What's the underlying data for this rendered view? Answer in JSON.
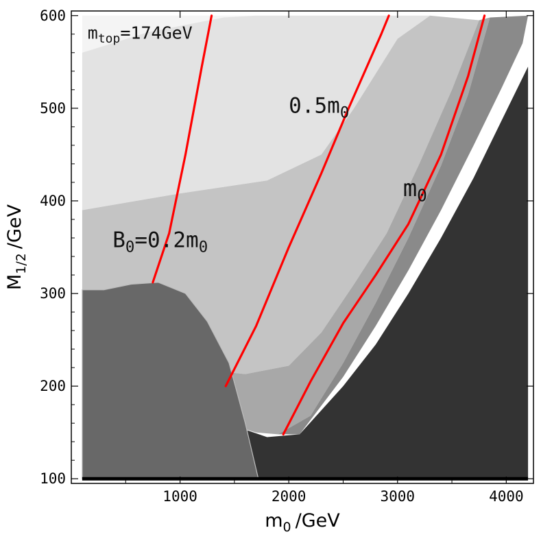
{
  "chart_data": {
    "type": "area",
    "title": "",
    "xlabel": {
      "base": "m",
      "sub": "0",
      "unit": "/GeV"
    },
    "ylabel": {
      "base": "M",
      "sub": "1/2",
      "unit": "/GeV"
    },
    "xlim": [
      0,
      4250
    ],
    "ylim": [
      95,
      605
    ],
    "xticks": [
      1000,
      2000,
      3000,
      4000
    ],
    "yticks": [
      100,
      200,
      300,
      400,
      500,
      600
    ],
    "grid": false,
    "colors": {
      "region_lightest": "#f4f4f4",
      "region_light": "#e3e3e3",
      "region_mid": "#c4c4c4",
      "region_midbottom": "#a8a8a8",
      "region_darker": "#8a8a8a",
      "region_excluded_left": "#686868",
      "region_excluded_right": "#333333",
      "contour_line": "#ff0000",
      "baseline": "#000000"
    },
    "regions": [
      {
        "name": "region_lightest",
        "points": [
          [
            100,
            560
          ],
          [
            700,
            582
          ],
          [
            1400,
            598
          ],
          [
            1700,
            600
          ],
          [
            100,
            600
          ]
        ]
      },
      {
        "name": "region_light",
        "points": [
          [
            100,
            390
          ],
          [
            1000,
            408
          ],
          [
            1800,
            422
          ],
          [
            2300,
            450
          ],
          [
            2600,
            500
          ],
          [
            3000,
            575
          ],
          [
            3300,
            600
          ],
          [
            1700,
            600
          ],
          [
            1400,
            598
          ],
          [
            700,
            582
          ],
          [
            100,
            560
          ]
        ]
      },
      {
        "name": "region_mid",
        "points": [
          [
            100,
            240
          ],
          [
            600,
            225
          ],
          [
            1200,
            218
          ],
          [
            1600,
            213
          ],
          [
            2000,
            222
          ],
          [
            2300,
            258
          ],
          [
            2600,
            310
          ],
          [
            2900,
            365
          ],
          [
            3200,
            440
          ],
          [
            3500,
            520
          ],
          [
            3750,
            595
          ],
          [
            3300,
            600
          ],
          [
            3000,
            575
          ],
          [
            2600,
            500
          ],
          [
            2300,
            450
          ],
          [
            1800,
            422
          ],
          [
            1000,
            408
          ],
          [
            100,
            390
          ]
        ]
      },
      {
        "name": "region_midbottom",
        "points": [
          [
            100,
            160
          ],
          [
            1500,
            157
          ],
          [
            1700,
            150
          ],
          [
            1900,
            148
          ],
          [
            2200,
            168
          ],
          [
            2500,
            225
          ],
          [
            2800,
            290
          ],
          [
            3100,
            360
          ],
          [
            3400,
            438
          ],
          [
            3650,
            515
          ],
          [
            3850,
            598
          ],
          [
            3750,
            595
          ],
          [
            3500,
            520
          ],
          [
            3200,
            440
          ],
          [
            2900,
            365
          ],
          [
            2600,
            310
          ],
          [
            2300,
            258
          ],
          [
            2000,
            222
          ],
          [
            1600,
            213
          ],
          [
            1200,
            218
          ],
          [
            600,
            225
          ],
          [
            100,
            240
          ]
        ]
      },
      {
        "name": "region_darker",
        "points": [
          [
            2100,
            148
          ],
          [
            2500,
            210
          ],
          [
            2800,
            265
          ],
          [
            3100,
            325
          ],
          [
            3400,
            390
          ],
          [
            3700,
            460
          ],
          [
            3950,
            520
          ],
          [
            4150,
            570
          ],
          [
            4200,
            600
          ],
          [
            3850,
            598
          ],
          [
            3650,
            515
          ],
          [
            3400,
            438
          ],
          [
            3100,
            360
          ],
          [
            2800,
            290
          ],
          [
            2500,
            225
          ],
          [
            2200,
            168
          ],
          [
            1900,
            148
          ]
        ]
      },
      {
        "name": "region_excluded_right",
        "points": [
          [
            100,
            160
          ],
          [
            1500,
            157
          ],
          [
            1800,
            145
          ],
          [
            2100,
            148
          ],
          [
            2500,
            200
          ],
          [
            2800,
            245
          ],
          [
            3100,
            300
          ],
          [
            3400,
            360
          ],
          [
            3700,
            425
          ],
          [
            3950,
            485
          ],
          [
            4200,
            545
          ],
          [
            4200,
            100
          ],
          [
            100,
            100
          ]
        ]
      },
      {
        "name": "region_excluded_left",
        "points": [
          [
            100,
            100
          ],
          [
            1720,
            100
          ],
          [
            1600,
            160
          ],
          [
            1450,
            225
          ],
          [
            1250,
            270
          ],
          [
            1050,
            300
          ],
          [
            800,
            312
          ],
          [
            550,
            310
          ],
          [
            300,
            304
          ],
          [
            100,
            304
          ]
        ]
      }
    ],
    "series": [
      {
        "points": [
          [
            750,
            312
          ],
          [
            900,
            365
          ],
          [
            1050,
            450
          ],
          [
            1200,
            545
          ],
          [
            1290,
            600
          ]
        ]
      },
      {
        "points": [
          [
            1420,
            200
          ],
          [
            1700,
            265
          ],
          [
            2000,
            350
          ],
          [
            2300,
            430
          ],
          [
            2550,
            500
          ],
          [
            2850,
            580
          ],
          [
            2920,
            600
          ]
        ]
      },
      {
        "points": [
          [
            1950,
            148
          ],
          [
            2200,
            205
          ],
          [
            2500,
            268
          ],
          [
            2800,
            320
          ],
          [
            3100,
            375
          ],
          [
            3400,
            450
          ],
          [
            3650,
            535
          ],
          [
            3800,
            600
          ]
        ]
      }
    ],
    "annotations": [
      {
        "base": "m",
        "sub": "top",
        "text": "=174GeV",
        "x": 150,
        "y": 575,
        "size": 25
      },
      {
        "base": "0.5m",
        "sub": "0",
        "text": "",
        "x": 2000,
        "y": 495,
        "size": 31
      },
      {
        "base": "m",
        "sub": "0",
        "text": "",
        "x": 3050,
        "y": 405,
        "size": 34
      },
      {
        "base": "B",
        "sub": "0",
        "text": "=0.2m",
        "sub2": "0",
        "x": 380,
        "y": 350,
        "size": 31
      }
    ],
    "baseline": {
      "y": 100,
      "x_from": 100,
      "x_to": 4200
    }
  }
}
